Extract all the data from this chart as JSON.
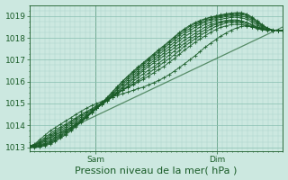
{
  "xlabel": "Pression niveau de la mer( hPa )",
  "ylim": [
    1012.8,
    1019.5
  ],
  "yticks": [
    1013,
    1014,
    1015,
    1016,
    1017,
    1018,
    1019
  ],
  "xlim": [
    0,
    100
  ],
  "xtick_positions": [
    26,
    74
  ],
  "xtick_labels": [
    "Sam",
    "Dim"
  ],
  "bg_color": "#cce8e0",
  "plot_bg_color": "#cce8e0",
  "grid_color_minor": "#aad4c8",
  "grid_color_major": "#88bfb0",
  "line_color": "#1a5c28",
  "marker": "+",
  "markersize": 2.5,
  "linewidth": 0.7,
  "xlabel_fontsize": 8,
  "tick_fontsize": 6.5,
  "series": [
    [
      1013.05,
      1013.15,
      1013.35,
      1013.55,
      1013.75,
      1013.9,
      1014.05,
      1014.2,
      1014.35,
      1014.5,
      1014.65,
      1014.78,
      1014.9,
      1015.0,
      1015.1,
      1015.2,
      1015.3,
      1015.38,
      1015.45,
      1015.52,
      1015.6,
      1015.68,
      1015.75,
      1015.85,
      1015.95,
      1016.05,
      1016.18,
      1016.32,
      1016.48,
      1016.65,
      1016.82,
      1017.0,
      1017.18,
      1017.38,
      1017.58,
      1017.75,
      1017.92,
      1018.08,
      1018.22,
      1018.35,
      1018.45,
      1018.52,
      1018.55,
      1018.52,
      1018.48,
      1018.43,
      1018.38,
      1018.35,
      1018.35,
      1018.35
    ],
    [
      1013.05,
      1013.12,
      1013.28,
      1013.45,
      1013.62,
      1013.78,
      1013.92,
      1014.06,
      1014.2,
      1014.35,
      1014.5,
      1014.63,
      1014.76,
      1014.9,
      1015.05,
      1015.2,
      1015.35,
      1015.5,
      1015.62,
      1015.73,
      1015.85,
      1015.98,
      1016.1,
      1016.25,
      1016.4,
      1016.55,
      1016.7,
      1016.88,
      1017.05,
      1017.25,
      1017.45,
      1017.62,
      1017.8,
      1017.95,
      1018.1,
      1018.25,
      1018.38,
      1018.48,
      1018.55,
      1018.6,
      1018.62,
      1018.6,
      1018.55,
      1018.5,
      1018.45,
      1018.4,
      1018.37,
      1018.35,
      1018.35,
      1018.35
    ],
    [
      1013.05,
      1013.1,
      1013.22,
      1013.38,
      1013.55,
      1013.7,
      1013.85,
      1014.0,
      1014.15,
      1014.3,
      1014.45,
      1014.58,
      1014.72,
      1014.86,
      1015.0,
      1015.15,
      1015.3,
      1015.45,
      1015.6,
      1015.75,
      1015.9,
      1016.05,
      1016.2,
      1016.38,
      1016.55,
      1016.72,
      1016.88,
      1017.05,
      1017.22,
      1017.42,
      1017.62,
      1017.78,
      1017.95,
      1018.1,
      1018.25,
      1018.4,
      1018.52,
      1018.6,
      1018.68,
      1018.72,
      1018.72,
      1018.68,
      1018.6,
      1018.5,
      1018.42,
      1018.37,
      1018.35,
      1018.35,
      1018.35,
      1018.35
    ],
    [
      1013.05,
      1013.08,
      1013.18,
      1013.32,
      1013.48,
      1013.63,
      1013.78,
      1013.92,
      1014.08,
      1014.22,
      1014.38,
      1014.52,
      1014.67,
      1014.82,
      1014.97,
      1015.12,
      1015.28,
      1015.45,
      1015.62,
      1015.8,
      1016.0,
      1016.18,
      1016.35,
      1016.52,
      1016.68,
      1016.85,
      1017.02,
      1017.2,
      1017.4,
      1017.58,
      1017.75,
      1017.92,
      1018.08,
      1018.22,
      1018.38,
      1018.52,
      1018.62,
      1018.7,
      1018.75,
      1018.78,
      1018.78,
      1018.75,
      1018.68,
      1018.58,
      1018.48,
      1018.4,
      1018.36,
      1018.35,
      1018.35,
      1018.35
    ],
    [
      1013.05,
      1013.06,
      1013.14,
      1013.26,
      1013.4,
      1013.55,
      1013.7,
      1013.85,
      1014.0,
      1014.15,
      1014.3,
      1014.46,
      1014.62,
      1014.78,
      1014.95,
      1015.12,
      1015.3,
      1015.5,
      1015.7,
      1015.9,
      1016.1,
      1016.3,
      1016.5,
      1016.68,
      1016.85,
      1017.0,
      1017.18,
      1017.35,
      1017.55,
      1017.72,
      1017.9,
      1018.05,
      1018.2,
      1018.35,
      1018.5,
      1018.6,
      1018.68,
      1018.75,
      1018.8,
      1018.82,
      1018.82,
      1018.78,
      1018.7,
      1018.6,
      1018.5,
      1018.42,
      1018.37,
      1018.35,
      1018.35,
      1018.35
    ],
    [
      1013.04,
      1013.05,
      1013.1,
      1013.2,
      1013.33,
      1013.47,
      1013.62,
      1013.77,
      1013.92,
      1014.08,
      1014.25,
      1014.42,
      1014.6,
      1014.78,
      1014.97,
      1015.15,
      1015.35,
      1015.55,
      1015.75,
      1015.97,
      1016.18,
      1016.38,
      1016.58,
      1016.78,
      1016.95,
      1017.12,
      1017.3,
      1017.48,
      1017.68,
      1017.88,
      1018.05,
      1018.2,
      1018.35,
      1018.5,
      1018.62,
      1018.72,
      1018.8,
      1018.85,
      1018.9,
      1018.93,
      1018.95,
      1018.92,
      1018.85,
      1018.72,
      1018.58,
      1018.45,
      1018.38,
      1018.35,
      1018.35,
      1018.35
    ],
    [
      1013.04,
      1013.04,
      1013.08,
      1013.16,
      1013.28,
      1013.42,
      1013.57,
      1013.72,
      1013.88,
      1014.05,
      1014.22,
      1014.4,
      1014.58,
      1014.78,
      1014.98,
      1015.18,
      1015.4,
      1015.62,
      1015.85,
      1016.07,
      1016.28,
      1016.48,
      1016.68,
      1016.87,
      1017.05,
      1017.23,
      1017.42,
      1017.6,
      1017.8,
      1018.0,
      1018.18,
      1018.33,
      1018.48,
      1018.62,
      1018.72,
      1018.82,
      1018.88,
      1018.93,
      1018.97,
      1019.0,
      1019.02,
      1019.0,
      1018.93,
      1018.8,
      1018.65,
      1018.5,
      1018.4,
      1018.35,
      1018.35,
      1018.35
    ],
    [
      1013.03,
      1013.03,
      1013.06,
      1013.13,
      1013.23,
      1013.37,
      1013.52,
      1013.67,
      1013.84,
      1014.02,
      1014.2,
      1014.38,
      1014.58,
      1014.78,
      1015.0,
      1015.22,
      1015.45,
      1015.68,
      1015.92,
      1016.15,
      1016.37,
      1016.57,
      1016.77,
      1016.97,
      1017.15,
      1017.33,
      1017.52,
      1017.72,
      1017.92,
      1018.12,
      1018.28,
      1018.43,
      1018.57,
      1018.68,
      1018.78,
      1018.87,
      1018.93,
      1018.98,
      1019.02,
      1019.05,
      1019.07,
      1019.07,
      1019.0,
      1018.87,
      1018.7,
      1018.55,
      1018.42,
      1018.35,
      1018.35,
      1018.35
    ],
    [
      1013.02,
      1013.02,
      1013.04,
      1013.1,
      1013.2,
      1013.32,
      1013.47,
      1013.62,
      1013.8,
      1013.98,
      1014.17,
      1014.37,
      1014.58,
      1014.8,
      1015.02,
      1015.25,
      1015.5,
      1015.75,
      1016.0,
      1016.22,
      1016.43,
      1016.63,
      1016.83,
      1017.03,
      1017.22,
      1017.42,
      1017.6,
      1017.8,
      1018.0,
      1018.2,
      1018.37,
      1018.52,
      1018.65,
      1018.75,
      1018.85,
      1018.93,
      1018.98,
      1019.02,
      1019.07,
      1019.1,
      1019.12,
      1019.12,
      1019.05,
      1018.92,
      1018.75,
      1018.58,
      1018.43,
      1018.35,
      1018.35,
      1018.35
    ],
    [
      1013.0,
      1013.0,
      1013.02,
      1013.07,
      1013.15,
      1013.27,
      1013.42,
      1013.57,
      1013.75,
      1013.95,
      1014.15,
      1014.35,
      1014.57,
      1014.8,
      1015.03,
      1015.28,
      1015.53,
      1015.78,
      1016.02,
      1016.25,
      1016.47,
      1016.67,
      1016.87,
      1017.07,
      1017.27,
      1017.47,
      1017.65,
      1017.85,
      1018.05,
      1018.25,
      1018.42,
      1018.57,
      1018.7,
      1018.8,
      1018.88,
      1018.95,
      1019.0,
      1019.05,
      1019.1,
      1019.13,
      1019.15,
      1019.15,
      1019.08,
      1018.95,
      1018.78,
      1018.6,
      1018.45,
      1018.36,
      1018.35,
      1018.35
    ]
  ],
  "trend_x": [
    0,
    100
  ],
  "trend_y": [
    1013.0,
    1018.5
  ],
  "vline_positions": [
    26,
    74
  ]
}
